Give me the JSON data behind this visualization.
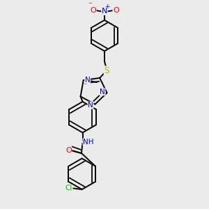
{
  "bg_color": "#ebebeb",
  "bond_color": "#000000",
  "bond_width": 1.4,
  "atom_colors": {
    "N": "#0000ee",
    "O": "#ee0000",
    "S": "#bbbb00",
    "Cl": "#00bb00",
    "C": "#000000"
  },
  "fontsize": 7.5
}
